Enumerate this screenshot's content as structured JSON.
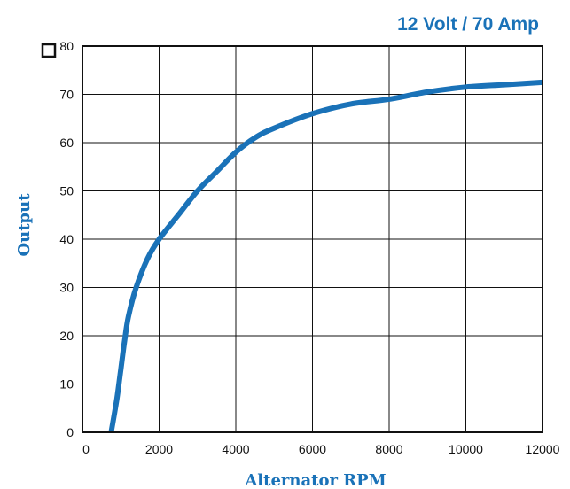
{
  "colors": {
    "accent": "#1a72b8",
    "grid": "#111111",
    "text": "#111111"
  },
  "chart_data": {
    "type": "line",
    "title": "12 Volt / 70 Amp",
    "xlabel": "Alternator RPM",
    "ylabel": "Output",
    "xlim": [
      0,
      12000
    ],
    "ylim": [
      0,
      80
    ],
    "x_ticks": [
      0,
      2000,
      4000,
      6000,
      8000,
      10000,
      12000
    ],
    "y_ticks": [
      0,
      10,
      20,
      30,
      40,
      50,
      60,
      70,
      80
    ],
    "x_tick_labels": [
      "0",
      "2000",
      "4000",
      "6000",
      "8000",
      "10000",
      "12000"
    ],
    "y_tick_labels": [
      "0",
      "10",
      "20",
      "30",
      "40",
      "50",
      "60",
      "70",
      "80"
    ],
    "grid": true,
    "series": [
      {
        "x": [
          750,
          900,
          1000,
          1100,
          1200,
          1400,
          1700,
          2000,
          2500,
          3000,
          3500,
          4000,
          4500,
          5000,
          6000,
          7000,
          8000,
          9000,
          10000,
          11000,
          12000
        ],
        "y": [
          0,
          7,
          13,
          19,
          24,
          30,
          36,
          40,
          45,
          50,
          54,
          58,
          61,
          63,
          66,
          68,
          69,
          70.5,
          71.5,
          72,
          72.5
        ]
      }
    ]
  }
}
